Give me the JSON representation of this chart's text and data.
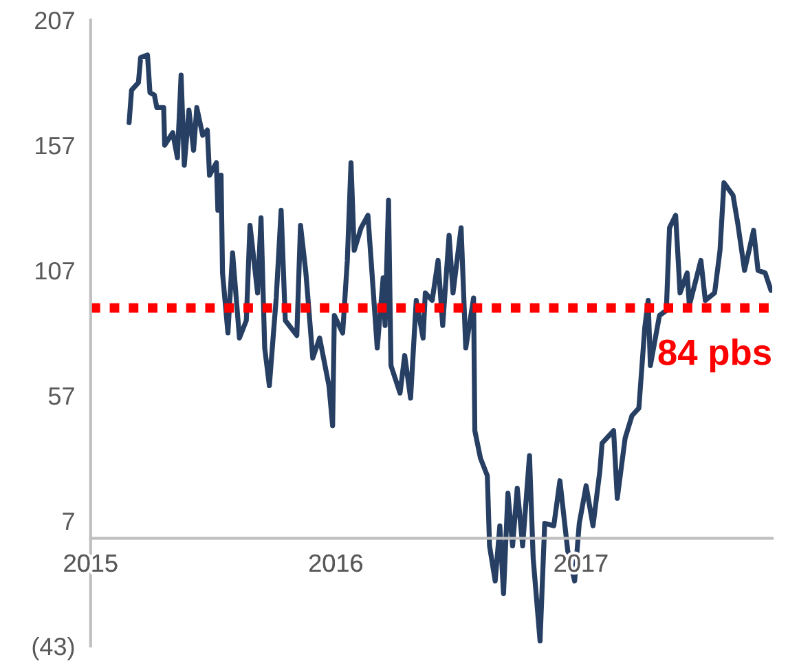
{
  "chart_data": {
    "type": "line",
    "x": [
      2015.157,
      2015.167,
      2015.195,
      2015.204,
      2015.232,
      2015.242,
      2015.26,
      2015.27,
      2015.298,
      2015.302,
      2015.335,
      2015.354,
      2015.369,
      2015.382,
      2015.401,
      2015.42,
      2015.433,
      2015.457,
      2015.476,
      2015.485,
      2015.513,
      2015.519,
      2015.532,
      2015.538,
      2015.56,
      2015.579,
      2015.607,
      2015.635,
      2015.65,
      2015.681,
      2015.695,
      2015.71,
      2015.729,
      2015.757,
      2015.777,
      2015.794,
      2015.841,
      2015.856,
      2015.878,
      2015.906,
      2015.934,
      2015.972,
      2015.987,
      2015.994,
      2016.028,
      2016.047,
      2016.062,
      2016.075,
      2016.103,
      2016.131,
      2016.144,
      2016.169,
      2016.193,
      2016.201,
      2016.215,
      2016.225,
      2016.262,
      2016.281,
      2016.305,
      2016.328,
      2016.356,
      2016.365,
      2016.393,
      2016.417,
      2016.436,
      2016.462,
      2016.478,
      2016.511,
      2016.53,
      2016.562,
      2016.567,
      2016.59,
      2016.618,
      2016.627,
      2016.65,
      2016.669,
      2016.684,
      2016.702,
      2016.721,
      2016.74,
      2016.762,
      2016.79,
      2016.805,
      2016.833,
      2016.852,
      2016.889,
      2016.914,
      2016.946,
      2016.974,
      2016.993,
      2017.021,
      2017.049,
      2017.077,
      2017.086,
      2017.133,
      2017.148,
      2017.18,
      2017.208,
      2017.236,
      2017.26,
      2017.274,
      2017.283,
      2017.32,
      2017.348,
      2017.361,
      2017.386,
      2017.404,
      2017.433,
      2017.442,
      2017.489,
      2017.507,
      2017.545,
      2017.567,
      2017.583,
      2017.62,
      2017.639,
      2017.667,
      2017.704,
      2017.722,
      2017.751,
      2017.775
    ],
    "series": [
      {
        "color": "#263f63",
        "values": [
          166,
          179,
          182,
          192,
          193,
          178,
          177,
          172,
          172,
          157,
          162,
          152,
          185,
          149,
          171,
          155,
          172,
          161,
          163,
          145,
          150,
          131,
          145,
          106,
          82,
          114,
          80,
          87,
          125,
          98,
          128,
          76,
          61,
          96,
          131,
          87,
          81,
          125,
          106,
          72,
          80,
          61,
          45,
          89,
          82,
          111,
          150,
          115,
          124,
          129,
          111,
          76,
          104,
          85,
          135,
          69,
          58,
          73,
          56,
          95,
          80,
          98,
          95,
          111,
          85,
          121,
          98,
          124,
          76,
          96,
          43,
          32,
          25,
          -3,
          -17,
          5,
          -22,
          18,
          -3,
          20,
          -3,
          33,
          -8,
          -41,
          6,
          5,
          23,
          -5,
          -17,
          6,
          21,
          5,
          27,
          38,
          43,
          16,
          40,
          49,
          52,
          84,
          95,
          69,
          89,
          91,
          124,
          129,
          98,
          106,
          93,
          111,
          95,
          98,
          115,
          142,
          137,
          126,
          107,
          123,
          107,
          106,
          99
        ]
      }
    ],
    "xlim": [
      2015,
      2017.78
    ],
    "xticks": [
      2015,
      2016,
      2017
    ],
    "ylim": [
      -43,
      207
    ],
    "yticks": [
      207,
      157,
      107,
      57,
      7,
      {
        "value": -43,
        "label": "(43)"
      }
    ],
    "ref_lines": [
      {
        "axis": "y",
        "value": 92,
        "label": "84 pbs",
        "color": "#ff0000",
        "line_style": "dotted"
      }
    ],
    "grid": false,
    "legend": false,
    "marker": "none",
    "line_style": "solid"
  }
}
